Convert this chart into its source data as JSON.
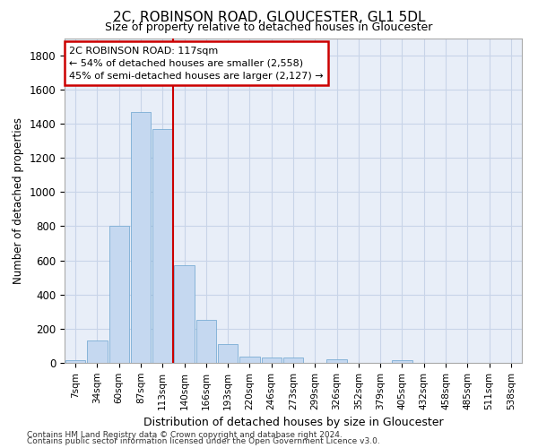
{
  "title1": "2C, ROBINSON ROAD, GLOUCESTER, GL1 5DL",
  "title2": "Size of property relative to detached houses in Gloucester",
  "xlabel": "Distribution of detached houses by size in Gloucester",
  "ylabel": "Number of detached properties",
  "bar_labels": [
    "7sqm",
    "34sqm",
    "60sqm",
    "87sqm",
    "113sqm",
    "140sqm",
    "166sqm",
    "193sqm",
    "220sqm",
    "246sqm",
    "273sqm",
    "299sqm",
    "326sqm",
    "352sqm",
    "379sqm",
    "405sqm",
    "432sqm",
    "458sqm",
    "485sqm",
    "511sqm",
    "538sqm"
  ],
  "bar_values": [
    15,
    130,
    800,
    1470,
    1370,
    570,
    250,
    110,
    35,
    30,
    30,
    0,
    20,
    0,
    0,
    15,
    0,
    0,
    0,
    0,
    0
  ],
  "bar_color": "#c5d8f0",
  "bar_edgecolor": "#7aadd4",
  "vline_color": "#cc0000",
  "vline_x": 4.5,
  "annotation_line1": "2C ROBINSON ROAD: 117sqm",
  "annotation_line2": "← 54% of detached houses are smaller (2,558)",
  "annotation_line3": "45% of semi-detached houses are larger (2,127) →",
  "annotation_box_color": "#ffffff",
  "annotation_box_edgecolor": "#cc0000",
  "ylim": [
    0,
    1900
  ],
  "yticks": [
    0,
    200,
    400,
    600,
    800,
    1000,
    1200,
    1400,
    1600,
    1800
  ],
  "grid_color": "#c8d4e8",
  "bg_color": "#e8eef8",
  "footer1": "Contains HM Land Registry data © Crown copyright and database right 2024.",
  "footer2": "Contains public sector information licensed under the Open Government Licence v3.0."
}
